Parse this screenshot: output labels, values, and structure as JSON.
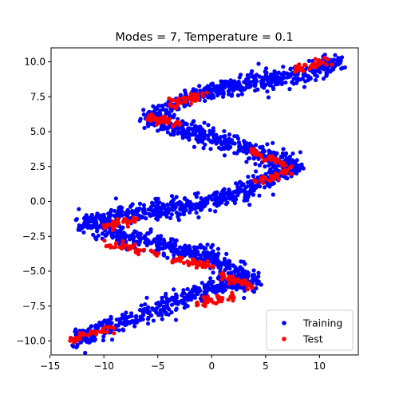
{
  "chart_data": {
    "type": "scatter",
    "title": "Modes = 7, Temperature = 0.1",
    "xlabel": "",
    "ylabel": "",
    "xlim": [
      -14.9,
      13.6
    ],
    "ylim": [
      -11.0,
      11.0
    ],
    "x_ticks": [
      -15,
      -10,
      -5,
      0,
      5,
      10
    ],
    "y_ticks": [
      -10.0,
      -7.5,
      -5.0,
      -2.5,
      0.0,
      2.5,
      5.0,
      7.5,
      10.0
    ],
    "x_tick_labels": [
      "−15",
      "−10",
      "−5",
      "0",
      "5",
      "10"
    ],
    "y_tick_labels": [
      "−10.0",
      "−7.5",
      "−5.0",
      "−2.5",
      "0.0",
      "2.5",
      "5.0",
      "7.5",
      "10.0"
    ],
    "grid": false,
    "legend_position": "bottom-right",
    "description_note": "",
    "series": [
      {
        "name": "Training",
        "color": "#0000ff",
        "marker": "circle",
        "path": [
          [
            -13.0,
            -10.0
          ],
          [
            -8.0,
            -8.7
          ],
          [
            0.0,
            -6.0
          ],
          [
            4.0,
            -5.8
          ],
          [
            0.0,
            -4.0
          ],
          [
            -8.0,
            -2.5
          ],
          [
            -12.0,
            -1.5
          ],
          [
            -8.0,
            -1.0
          ],
          [
            0.0,
            0.0
          ],
          [
            8.0,
            2.5
          ],
          [
            4.0,
            3.5
          ],
          [
            -6.0,
            6.0
          ],
          [
            0.0,
            8.0
          ],
          [
            8.0,
            9.0
          ],
          [
            12.0,
            10.0
          ]
        ],
        "spread": 0.35,
        "n_points": 2200
      },
      {
        "name": "Test",
        "color": "#ff0000",
        "marker": "circle",
        "segments": [
          [
            [
              -13.0,
              -9.8
            ],
            [
              -9.0,
              -9.0
            ]
          ],
          [
            [
              -1.5,
              -7.4
            ],
            [
              2.0,
              -6.8
            ]
          ],
          [
            [
              1.0,
              -5.3
            ],
            [
              4.0,
              -6.2
            ]
          ],
          [
            [
              -10.0,
              -3.0
            ],
            [
              -5.0,
              -3.8
            ]
          ],
          [
            [
              -4.0,
              -4.2
            ],
            [
              0.0,
              -4.6
            ]
          ],
          [
            [
              -10.0,
              -1.8
            ],
            [
              -7.0,
              -1.3
            ]
          ],
          [
            [
              4.0,
              1.3
            ],
            [
              7.5,
              2.3
            ]
          ],
          [
            [
              3.5,
              3.6
            ],
            [
              7.0,
              2.6
            ]
          ],
          [
            [
              -6.0,
              6.0
            ],
            [
              -3.0,
              5.6
            ]
          ],
          [
            [
              -4.0,
              7.0
            ],
            [
              -0.5,
              7.7
            ]
          ],
          [
            [
              7.5,
              9.4
            ],
            [
              11.0,
              10.0
            ]
          ]
        ],
        "spread": 0.15,
        "n_points": 420
      }
    ]
  }
}
